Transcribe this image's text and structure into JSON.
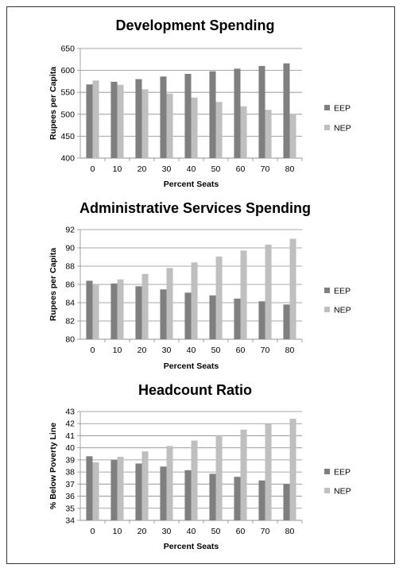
{
  "colors": {
    "EEP": "#7f7f7f",
    "NEP": "#bfbfbf"
  },
  "chart_data": [
    {
      "type": "bar",
      "title": "Development Spending",
      "xlabel": "Percent Seats",
      "ylabel": "Rupees per Capita",
      "categories": [
        "0",
        "10",
        "20",
        "30",
        "40",
        "50",
        "60",
        "70",
        "80"
      ],
      "ylim": [
        400,
        650
      ],
      "yticks": [
        400,
        450,
        500,
        550,
        600,
        650
      ],
      "grid": true,
      "legend": "right",
      "series": [
        {
          "name": "EEP",
          "values": [
            568,
            574,
            580,
            586,
            592,
            598,
            604,
            610,
            616
          ]
        },
        {
          "name": "NEP",
          "values": [
            577,
            567,
            557,
            547,
            538,
            528,
            518,
            510,
            500
          ]
        }
      ]
    },
    {
      "type": "bar",
      "title": "Administrative Services Spending",
      "xlabel": "Percent Seats",
      "ylabel": "Rupees per Capita",
      "categories": [
        "0",
        "10",
        "20",
        "30",
        "40",
        "50",
        "60",
        "70",
        "80"
      ],
      "ylim": [
        80,
        92
      ],
      "yticks": [
        80,
        82,
        84,
        86,
        88,
        90,
        92
      ],
      "grid": true,
      "legend": "right",
      "series": [
        {
          "name": "EEP",
          "values": [
            86.4,
            86.1,
            85.8,
            85.45,
            85.1,
            84.8,
            84.45,
            84.15,
            83.8
          ]
        },
        {
          "name": "NEP",
          "values": [
            86.0,
            86.55,
            87.15,
            87.8,
            88.4,
            89.05,
            89.7,
            90.35,
            91.0
          ]
        }
      ]
    },
    {
      "type": "bar",
      "title": "Headcount Ratio",
      "xlabel": "Percent Seats",
      "ylabel": "% Below Poverty Line",
      "categories": [
        "0",
        "10",
        "20",
        "30",
        "40",
        "50",
        "60",
        "70",
        "80"
      ],
      "ylim": [
        34,
        43
      ],
      "yticks": [
        34,
        35,
        36,
        37,
        38,
        39,
        40,
        41,
        42,
        43
      ],
      "grid": true,
      "legend": "right",
      "series": [
        {
          "name": "EEP",
          "values": [
            39.3,
            39.0,
            38.7,
            38.45,
            38.15,
            37.85,
            37.6,
            37.3,
            37.0
          ]
        },
        {
          "name": "NEP",
          "values": [
            38.8,
            39.25,
            39.7,
            40.15,
            40.6,
            41.05,
            41.5,
            42.0,
            42.4
          ]
        }
      ]
    }
  ]
}
